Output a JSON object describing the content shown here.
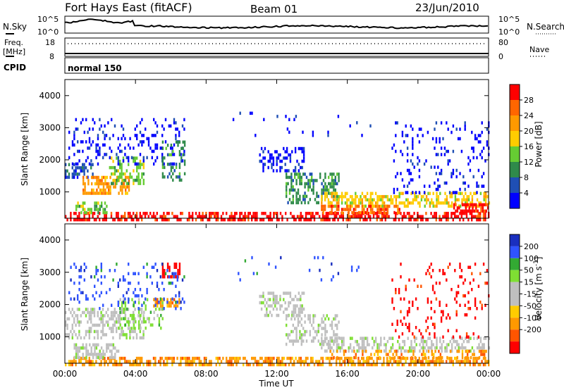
{
  "header": {
    "station": "Fort Hays East (fitACF)",
    "beam": "Beam 01",
    "date": "23/Jun/2010"
  },
  "nsky_panel": {
    "left_label": "N.Sky",
    "right_label": "N.Search",
    "tick_top": "10^5",
    "tick_bottom": "10^0"
  },
  "freq_panel": {
    "left_label_1": "Freq.",
    "left_label_2": "[MHz]",
    "left_tick_top": "18",
    "left_tick_bottom": "8",
    "right_label": "Nave",
    "right_tick_top": "80",
    "right_tick_bottom": "0"
  },
  "cpid": {
    "label": "CPID",
    "mode": "normal 150"
  },
  "colors": {
    "power_scale": [
      "#0000ff",
      "#1f4fb4",
      "#2f8a4a",
      "#66cc33",
      "#ffcc00",
      "#ff9900",
      "#ff6600",
      "#ff0000"
    ],
    "velocity_scale": [
      "#1a2fbf",
      "#2f53ff",
      "#33aa33",
      "#7fdf33",
      "#bfbfbf",
      "#bfbfbf",
      "#ffcc00",
      "#ff9900",
      "#ff5500",
      "#ff0000"
    ]
  },
  "chart_data": [
    {
      "type": "heatmap",
      "name": "power-panel",
      "ylabel": "Slant Range [km]",
      "ylim": [
        180,
        4500
      ],
      "yticks": [
        "1000",
        "2000",
        "3000",
        "4000"
      ],
      "xlim": [
        0,
        24
      ],
      "colorbar_label": "Power [dB]",
      "colorbar_ticks": [
        "4",
        "8",
        "12",
        "16",
        "20",
        "24",
        "28"
      ],
      "regions": [
        {
          "t0": 0.0,
          "t1": 24.0,
          "r0": 180,
          "r1": 380,
          "c": 7,
          "d": 0.55
        },
        {
          "t0": 0.6,
          "t1": 2.4,
          "r0": 350,
          "r1": 700,
          "c": 3,
          "d": 0.45
        },
        {
          "t0": 0.0,
          "t1": 1.6,
          "r0": 1500,
          "r1": 1900,
          "c": 1,
          "d": 0.55
        },
        {
          "t0": 1.0,
          "t1": 3.6,
          "r0": 1000,
          "r1": 1500,
          "c": 5,
          "d": 0.6
        },
        {
          "t0": 2.5,
          "t1": 4.5,
          "r0": 1300,
          "r1": 2100,
          "c": 3,
          "d": 0.45
        },
        {
          "t0": 0.2,
          "t1": 6.8,
          "r0": 1900,
          "r1": 3300,
          "c": 0,
          "d": 0.18
        },
        {
          "t0": 5.5,
          "t1": 6.8,
          "r0": 1400,
          "r1": 2600,
          "c": 2,
          "d": 0.3
        },
        {
          "t0": 11.0,
          "t1": 13.5,
          "r0": 1700,
          "r1": 2400,
          "c": 0,
          "d": 0.35
        },
        {
          "t0": 12.5,
          "t1": 15.5,
          "r0": 700,
          "r1": 1600,
          "c": 2,
          "d": 0.4
        },
        {
          "t0": 14.5,
          "t1": 24.0,
          "r0": 600,
          "r1": 1000,
          "c": 4,
          "d": 0.5
        },
        {
          "t0": 14.5,
          "t1": 19.0,
          "r0": 380,
          "r1": 600,
          "c": 6,
          "d": 0.55
        },
        {
          "t0": 22.0,
          "t1": 24.0,
          "r0": 380,
          "r1": 650,
          "c": 7,
          "d": 0.7
        },
        {
          "t0": 18.5,
          "t1": 24.0,
          "r0": 1000,
          "r1": 3200,
          "c": 0,
          "d": 0.12
        },
        {
          "t0": 9.5,
          "t1": 18.0,
          "r0": 2800,
          "r1": 3500,
          "c": 0,
          "d": 0.04
        }
      ]
    },
    {
      "type": "heatmap",
      "name": "velocity-panel",
      "ylabel": "Slant Range [km]",
      "ylim": [
        180,
        4500
      ],
      "yticks": [
        "1000",
        "2000",
        "3000",
        "4000"
      ],
      "xlabel": "Time UT",
      "xticks": [
        "00:00",
        "04:00",
        "08:00",
        "12:00",
        "16:00",
        "20:00",
        "00:00"
      ],
      "xlim": [
        0,
        24
      ],
      "colorbar_label": "Velocity [m s^-1]",
      "colorbar_ticks": [
        "200",
        "100",
        "50",
        "15",
        "-15",
        "-50",
        "-100",
        "-200"
      ],
      "regions": [
        {
          "t0": 0.0,
          "t1": 24.0,
          "r0": 180,
          "r1": 380,
          "c": 7,
          "d": 0.6
        },
        {
          "t0": 0.5,
          "t1": 3.0,
          "r0": 380,
          "r1": 800,
          "c": 4,
          "d": 0.55
        },
        {
          "t0": 0.0,
          "t1": 4.5,
          "r0": 1000,
          "r1": 1900,
          "c": 4,
          "d": 0.45
        },
        {
          "t0": 3.0,
          "t1": 5.5,
          "r0": 1300,
          "r1": 2200,
          "c": 3,
          "d": 0.3
        },
        {
          "t0": 5.0,
          "t1": 6.5,
          "r0": 2000,
          "r1": 2200,
          "c": 7,
          "d": 0.5
        },
        {
          "t0": 5.5,
          "t1": 6.5,
          "r0": 2900,
          "r1": 3300,
          "c": 9,
          "d": 0.4
        },
        {
          "t0": 0.2,
          "t1": 6.8,
          "r0": 1900,
          "r1": 3300,
          "c": 1,
          "d": 0.14
        },
        {
          "t0": 11.0,
          "t1": 13.5,
          "r0": 1700,
          "r1": 2400,
          "c": 4,
          "d": 0.4
        },
        {
          "t0": 12.5,
          "t1": 15.5,
          "r0": 800,
          "r1": 1700,
          "c": 4,
          "d": 0.4
        },
        {
          "t0": 14.5,
          "t1": 24.0,
          "r0": 600,
          "r1": 1000,
          "c": 4,
          "d": 0.45
        },
        {
          "t0": 15.0,
          "t1": 24.0,
          "r0": 380,
          "r1": 600,
          "c": 7,
          "d": 0.3
        },
        {
          "t0": 18.5,
          "t1": 24.0,
          "r0": 1000,
          "r1": 3300,
          "c": 9,
          "d": 0.1
        },
        {
          "t0": 9.5,
          "t1": 18.0,
          "r0": 2800,
          "r1": 3500,
          "c": 1,
          "d": 0.04
        }
      ]
    }
  ]
}
